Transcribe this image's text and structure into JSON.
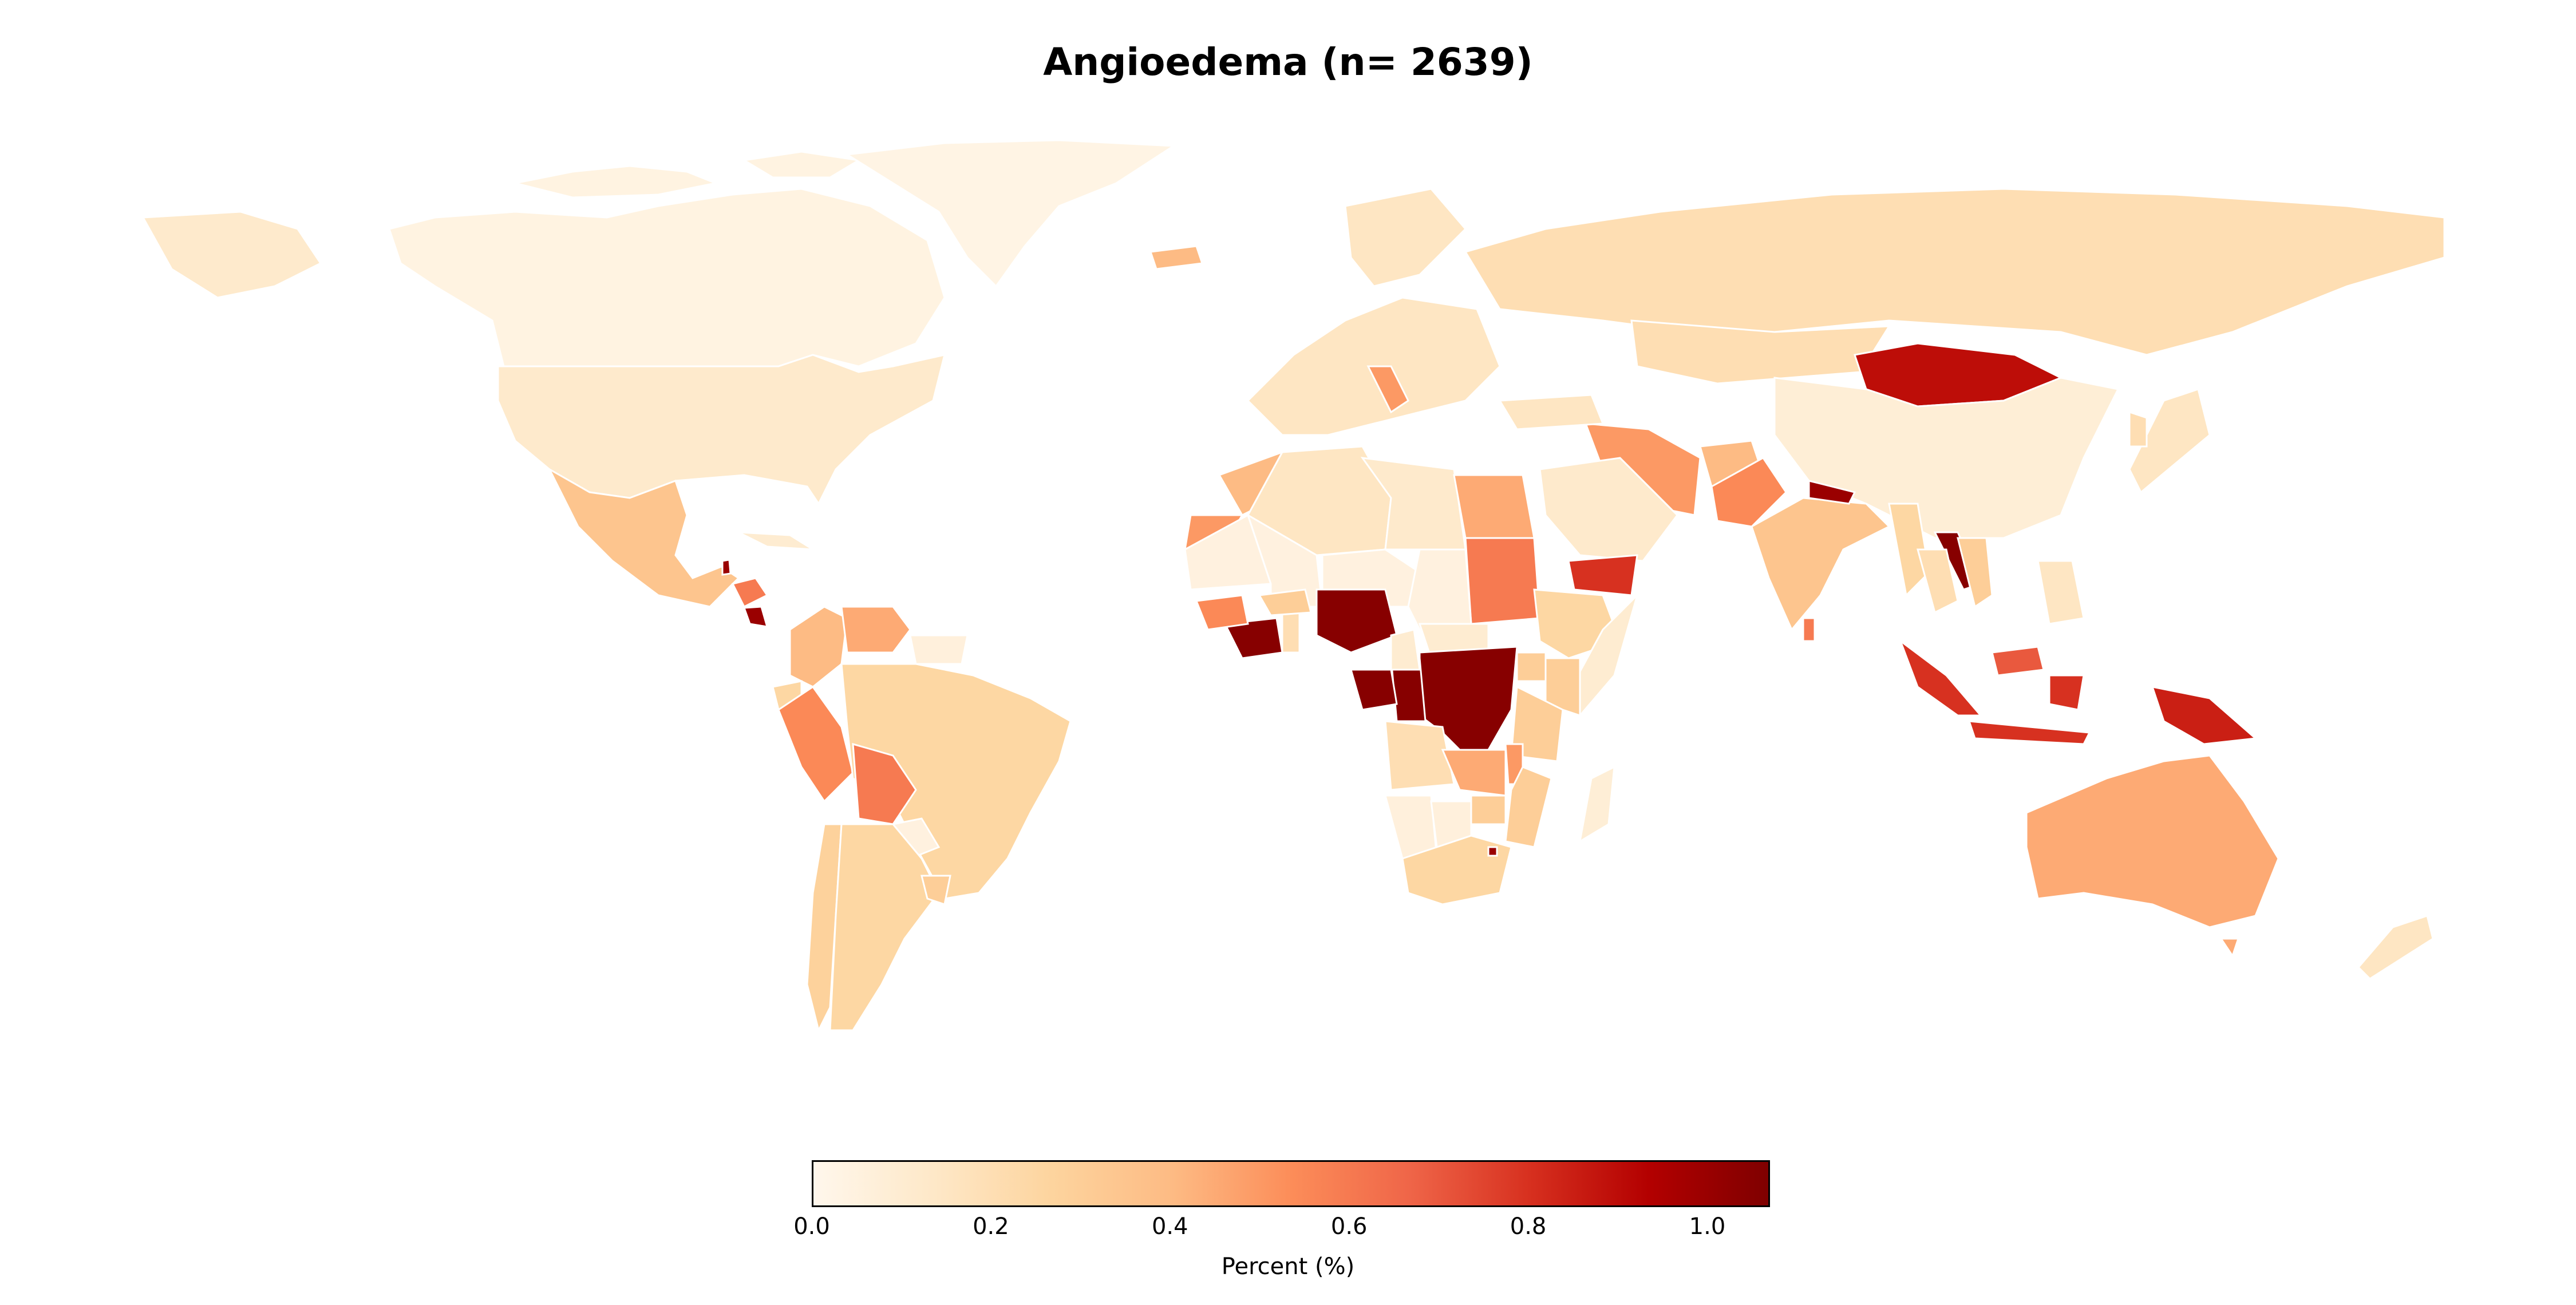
{
  "title": "Angioedema (n= 2639)",
  "colorbar": {
    "label": "Percent (%)",
    "min": 0.0,
    "max": 1.07,
    "ticks": [
      "0.0",
      "0.2",
      "0.4",
      "0.6",
      "0.8",
      "1.0"
    ],
    "tick_values": [
      0.0,
      0.2,
      0.4,
      0.6,
      0.8,
      1.0
    ],
    "colormap": "OrRd",
    "colors": [
      "#fff7ec",
      "#fee8c8",
      "#fdd49e",
      "#fdbb84",
      "#fc8d59",
      "#ef6548",
      "#d7301f",
      "#b30000",
      "#7f0000"
    ]
  },
  "chart_data": {
    "type": "choropleth",
    "title": "Angioedema (n= 2639)",
    "legend_label": "Percent (%)",
    "value_range": [
      0.0,
      1.07
    ],
    "regions": [
      {
        "name": "Canada",
        "value": 0.04
      },
      {
        "name": "Greenland",
        "value": 0.03
      },
      {
        "name": "United States",
        "value": 0.12
      },
      {
        "name": "Mexico",
        "value": 0.35
      },
      {
        "name": "Guatemala",
        "value": 1.0
      },
      {
        "name": "Honduras",
        "value": 0.6
      },
      {
        "name": "Nicaragua",
        "value": 1.0
      },
      {
        "name": "Cuba",
        "value": 0.1
      },
      {
        "name": "Colombia",
        "value": 0.4
      },
      {
        "name": "Venezuela",
        "value": 0.45
      },
      {
        "name": "Guyana",
        "value": 0.06
      },
      {
        "name": "Ecuador",
        "value": 0.25
      },
      {
        "name": "Peru",
        "value": 0.55
      },
      {
        "name": "Brazil",
        "value": 0.25
      },
      {
        "name": "Bolivia",
        "value": 0.6
      },
      {
        "name": "Paraguay",
        "value": 0.05
      },
      {
        "name": "Chile",
        "value": 0.28
      },
      {
        "name": "Argentina",
        "value": 0.25
      },
      {
        "name": "Uruguay",
        "value": 0.3
      },
      {
        "name": "Morocco",
        "value": 0.4
      },
      {
        "name": "Algeria",
        "value": 0.15
      },
      {
        "name": "Libya",
        "value": 0.12
      },
      {
        "name": "Egypt",
        "value": 0.45
      },
      {
        "name": "Sudan",
        "value": 0.6
      },
      {
        "name": "Western Sahara",
        "value": 0.5
      },
      {
        "name": "Mauritania",
        "value": 0.05
      },
      {
        "name": "Mali",
        "value": 0.05
      },
      {
        "name": "Niger",
        "value": 0.05
      },
      {
        "name": "Chad",
        "value": 0.05
      },
      {
        "name": "Nigeria",
        "value": 1.05
      },
      {
        "name": "Ivory Coast",
        "value": 1.05
      },
      {
        "name": "Guinea",
        "value": 0.55
      },
      {
        "name": "Ghana",
        "value": 0.2
      },
      {
        "name": "Burkina Faso",
        "value": 0.3
      },
      {
        "name": "Central African Republic",
        "value": 0.1
      },
      {
        "name": "DR Congo",
        "value": 1.05
      },
      {
        "name": "Congo",
        "value": 1.05
      },
      {
        "name": "Gabon",
        "value": 1.05
      },
      {
        "name": "Cameroon",
        "value": 0.1
      },
      {
        "name": "Ethiopia",
        "value": 0.25
      },
      {
        "name": "Somalia",
        "value": 0.1
      },
      {
        "name": "Kenya",
        "value": 0.3
      },
      {
        "name": "Uganda",
        "value": 0.3
      },
      {
        "name": "Tanzania",
        "value": 0.3
      },
      {
        "name": "Angola",
        "value": 0.2
      },
      {
        "name": "Zambia",
        "value": 0.45
      },
      {
        "name": "Malawi",
        "value": 0.5
      },
      {
        "name": "Mozambique",
        "value": 0.3
      },
      {
        "name": "Namibia",
        "value": 0.06
      },
      {
        "name": "Botswana",
        "value": 0.06
      },
      {
        "name": "Zimbabwe",
        "value": 0.3
      },
      {
        "name": "South Africa",
        "value": 0.25
      },
      {
        "name": "Madagascar",
        "value": 0.08
      },
      {
        "name": "Lesotho",
        "value": 1.0
      },
      {
        "name": "Russia",
        "value": 0.2
      },
      {
        "name": "Kazakhstan",
        "value": 0.2
      },
      {
        "name": "Mongolia",
        "value": 0.9
      },
      {
        "name": "China",
        "value": 0.08
      },
      {
        "name": "Iran",
        "value": 0.5
      },
      {
        "name": "Afghanistan",
        "value": 0.4
      },
      {
        "name": "Pakistan",
        "value": 0.55
      },
      {
        "name": "India",
        "value": 0.35
      },
      {
        "name": "Nepal",
        "value": 1.0
      },
      {
        "name": "Saudi Arabia",
        "value": 0.12
      },
      {
        "name": "Yemen",
        "value": 0.8
      },
      {
        "name": "Turkey",
        "value": 0.15
      },
      {
        "name": "Myanmar",
        "value": 0.25
      },
      {
        "name": "Laos",
        "value": 1.05
      },
      {
        "name": "Thailand",
        "value": 0.2
      },
      {
        "name": "Vietnam",
        "value": 0.3
      },
      {
        "name": "Sri Lanka",
        "value": 0.6
      },
      {
        "name": "Malaysia",
        "value": 0.7
      },
      {
        "name": "Indonesia",
        "value": 0.8
      },
      {
        "name": "Papua New Guinea",
        "value": 0.85
      },
      {
        "name": "Philippines",
        "value": 0.15
      },
      {
        "name": "Japan",
        "value": 0.15
      },
      {
        "name": "Korea",
        "value": 0.2
      },
      {
        "name": "Australia",
        "value": 0.45
      },
      {
        "name": "New Zealand",
        "value": 0.15
      },
      {
        "name": "Europe",
        "value": 0.15
      },
      {
        "name": "Iceland",
        "value": 0.4
      },
      {
        "name": "Italy",
        "value": 0.5
      }
    ]
  }
}
